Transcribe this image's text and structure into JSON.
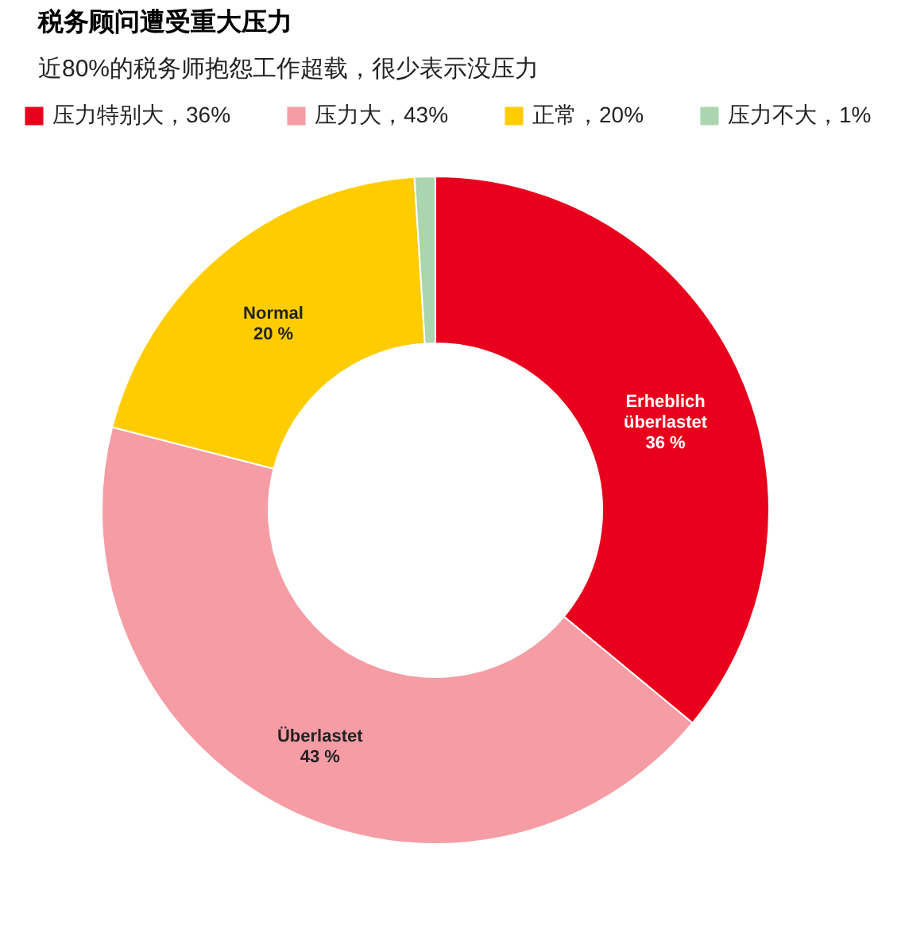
{
  "chart_data": {
    "type": "donut",
    "title": "税务顾问遭受重大压力",
    "subtitle": "近80%的税务师抱怨工作超载，很少表示没压力",
    "categories": [
      "压力特别大，36%",
      "压力大，43%",
      "正常，20%",
      "压力不大，1%"
    ],
    "values": [
      36,
      43,
      20,
      1
    ],
    "colors": [
      "#e8001c",
      "#f59ca5",
      "#ffcc00",
      "#aad5ae"
    ],
    "value_labels": [
      "Erheblich\nüberlastet\n36 %",
      "Überlastet\n43 %",
      "Normal\n20 %",
      null
    ],
    "legend": "top"
  }
}
